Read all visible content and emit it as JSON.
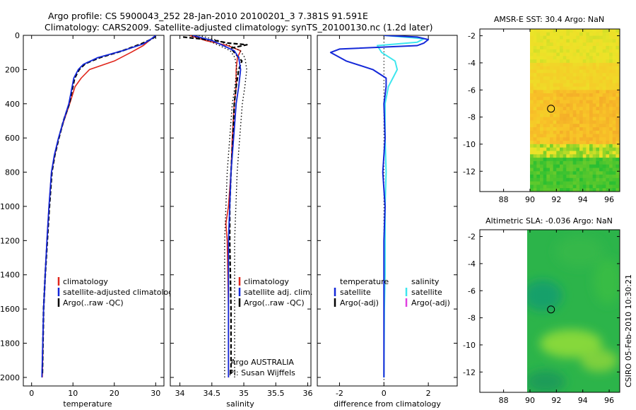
{
  "header": {
    "title_line1": "Argo profile: CS 5900043_252 28-Jan-2010 20100201_3 7.381S 91.591E",
    "title_line2": "Climatology: CARS2009. Satellite-adjusted climatology: synTS_20100130.nc (1.2d later)"
  },
  "side_stamp": "CSIRO 05-Feb-2010 10:30:21",
  "colors": {
    "climatology": "#e0261c",
    "satellite": "#1428d8",
    "argo": "#000000",
    "salinity_sat": "#3ee6ee",
    "argo_adj": "#e040e0"
  },
  "depth_axis": {
    "range": [
      0,
      2050
    ],
    "ticks": [
      "0",
      "200",
      "400",
      "600",
      "800",
      "1000",
      "1200",
      "1400",
      "1600",
      "1800",
      "2000"
    ]
  },
  "chart_data": [
    {
      "type": "line",
      "panel": "temperature",
      "xlabel": "temperature",
      "xlim": [
        -2,
        32
      ],
      "xticks": [
        "0",
        "10",
        "20",
        "30"
      ],
      "y_inverted": true,
      "legend": [
        "climatology",
        "satellite-adjusted climatology",
        "Argo(..raw -QC)"
      ],
      "series": [
        {
          "name": "climatology",
          "x": [
            30,
            28.5,
            27,
            24,
            20,
            14,
            12,
            10.5,
            9.2,
            7.8,
            6.5,
            5.6,
            4.8,
            4.2,
            3.7,
            3.3,
            2.9,
            2.6
          ],
          "y": [
            0,
            30,
            60,
            100,
            150,
            200,
            250,
            300,
            400,
            500,
            600,
            700,
            800,
            1000,
            1200,
            1400,
            1600,
            2000
          ]
        },
        {
          "name": "satellite",
          "x": [
            30,
            29,
            27,
            22,
            16,
            12.5,
            11.3,
            10.2,
            9,
            7.7,
            6.5,
            5.5,
            4.8,
            4.2,
            3.7,
            3.3,
            2.9,
            2.5
          ],
          "y": [
            0,
            20,
            50,
            90,
            130,
            170,
            200,
            250,
            400,
            500,
            600,
            700,
            800,
            1000,
            1200,
            1400,
            1600,
            2000
          ]
        },
        {
          "name": "Argo",
          "x": [
            30,
            28.8,
            26.5,
            22,
            16.5,
            13,
            11.5,
            10.4,
            9.1,
            7.7,
            6.6,
            5.6,
            4.9,
            4.3,
            3.8,
            3.3,
            2.9,
            2.6
          ],
          "y": [
            5,
            25,
            50,
            90,
            130,
            165,
            200,
            250,
            400,
            500,
            600,
            700,
            800,
            1000,
            1200,
            1400,
            1600,
            1980
          ]
        }
      ]
    },
    {
      "type": "line",
      "panel": "salinity",
      "xlabel": "salinity",
      "xlim": [
        33.85,
        36.05
      ],
      "xticks": [
        "34",
        "34.5",
        "35",
        "35.5",
        "36"
      ],
      "y_inverted": true,
      "legend": [
        "climatology",
        "satellite adj. clim.",
        "Argo(..raw -QC)"
      ],
      "annotations": [
        "Argo AUSTRALIA",
        "PI: Susan Wijffels"
      ],
      "series": [
        {
          "name": "climatology",
          "x": [
            34.15,
            34.4,
            34.75,
            34.95,
            34.9,
            34.88,
            34.88,
            34.85,
            34.82,
            34.8,
            34.76,
            34.72,
            34.74,
            34.75,
            34.76,
            34.76
          ],
          "y": [
            0,
            30,
            60,
            90,
            130,
            200,
            300,
            400,
            600,
            800,
            1000,
            1100,
            1200,
            1400,
            1600,
            2000
          ]
        },
        {
          "name": "satellite",
          "x": [
            34.2,
            34.5,
            34.68,
            34.85,
            34.92,
            34.95,
            34.92,
            34.88,
            34.84,
            34.8,
            34.78,
            34.77,
            34.76,
            34.76,
            34.76,
            34.76
          ],
          "y": [
            0,
            30,
            60,
            90,
            130,
            200,
            300,
            400,
            600,
            800,
            1000,
            1100,
            1200,
            1400,
            1600,
            2000
          ]
        },
        {
          "name": "Argo",
          "x": [
            34.05,
            34.3,
            34.55,
            34.75,
            35.05,
            34.8,
            34.85,
            34.97,
            34.92,
            34.88,
            34.85,
            34.83,
            34.8,
            34.78,
            34.78,
            34.79,
            34.8,
            34.8
          ],
          "y": [
            10,
            20,
            30,
            45,
            55,
            75,
            100,
            150,
            200,
            300,
            400,
            600,
            800,
            1000,
            1200,
            1400,
            1600,
            1980
          ]
        }
      ]
    },
    {
      "type": "line",
      "panel": "difference",
      "xlabel": "difference from climatology",
      "xlim": [
        -3,
        3.3
      ],
      "xticks": [
        "-2",
        "0",
        "2"
      ],
      "y_inverted": true,
      "legend_groups": [
        {
          "heading": "temperature",
          "items": [
            "satellite",
            "Argo(-adj)"
          ]
        },
        {
          "heading": "salinity",
          "items": [
            "satellite",
            "Argo(-adj)"
          ]
        }
      ],
      "series": [
        {
          "name": "temperature satellite",
          "x": [
            0,
            1.5,
            2,
            1.8,
            1.5,
            -2,
            -2.4,
            -1.7,
            -0.5,
            0.1,
            0.1,
            0,
            0.05,
            -0.05,
            0.05,
            0,
            0,
            0,
            0
          ],
          "y": [
            0,
            10,
            25,
            45,
            60,
            80,
            100,
            150,
            200,
            250,
            300,
            400,
            600,
            800,
            1000,
            1200,
            1400,
            1600,
            2000
          ]
        },
        {
          "name": "salinity satellite",
          "x": [
            0,
            1.8,
            1.5,
            -0.3,
            -0.2,
            -0.1,
            0.5,
            0.6,
            0.4,
            0.2,
            0.05,
            0.05,
            0.1,
            0.05,
            0.05,
            0.05,
            0.02,
            0
          ],
          "y": [
            0,
            20,
            40,
            60,
            80,
            100,
            150,
            200,
            250,
            300,
            400,
            600,
            800,
            1000,
            1200,
            1400,
            1600,
            2000
          ]
        }
      ]
    },
    {
      "type": "heatmap",
      "panel": "sst_map",
      "title": "AMSR-E SST: 30.4 Argo: NaN",
      "xlim": [
        86.2,
        96.8
      ],
      "ylim": [
        -13.5,
        -1.5
      ],
      "xticks": [
        "88",
        "90",
        "92",
        "94",
        "96"
      ],
      "yticks": [
        "-2",
        "-4",
        "-6",
        "-8",
        "-10",
        "-12"
      ],
      "data_lon_range": [
        90,
        96.8
      ],
      "marker": {
        "lon": 91.591,
        "lat": -7.381
      }
    },
    {
      "type": "heatmap",
      "panel": "sla_map",
      "title": "Altimetric SLA: -0.036 Argo: NaN",
      "xlim": [
        86.2,
        96.8
      ],
      "ylim": [
        -13.5,
        -1.5
      ],
      "xticks": [
        "88",
        "90",
        "92",
        "94",
        "96"
      ],
      "yticks": [
        "-2",
        "-4",
        "-6",
        "-8",
        "-10",
        "-12"
      ],
      "data_lon_range": [
        90,
        96.8
      ],
      "marker": {
        "lon": 91.591,
        "lat": -7.381
      }
    }
  ]
}
